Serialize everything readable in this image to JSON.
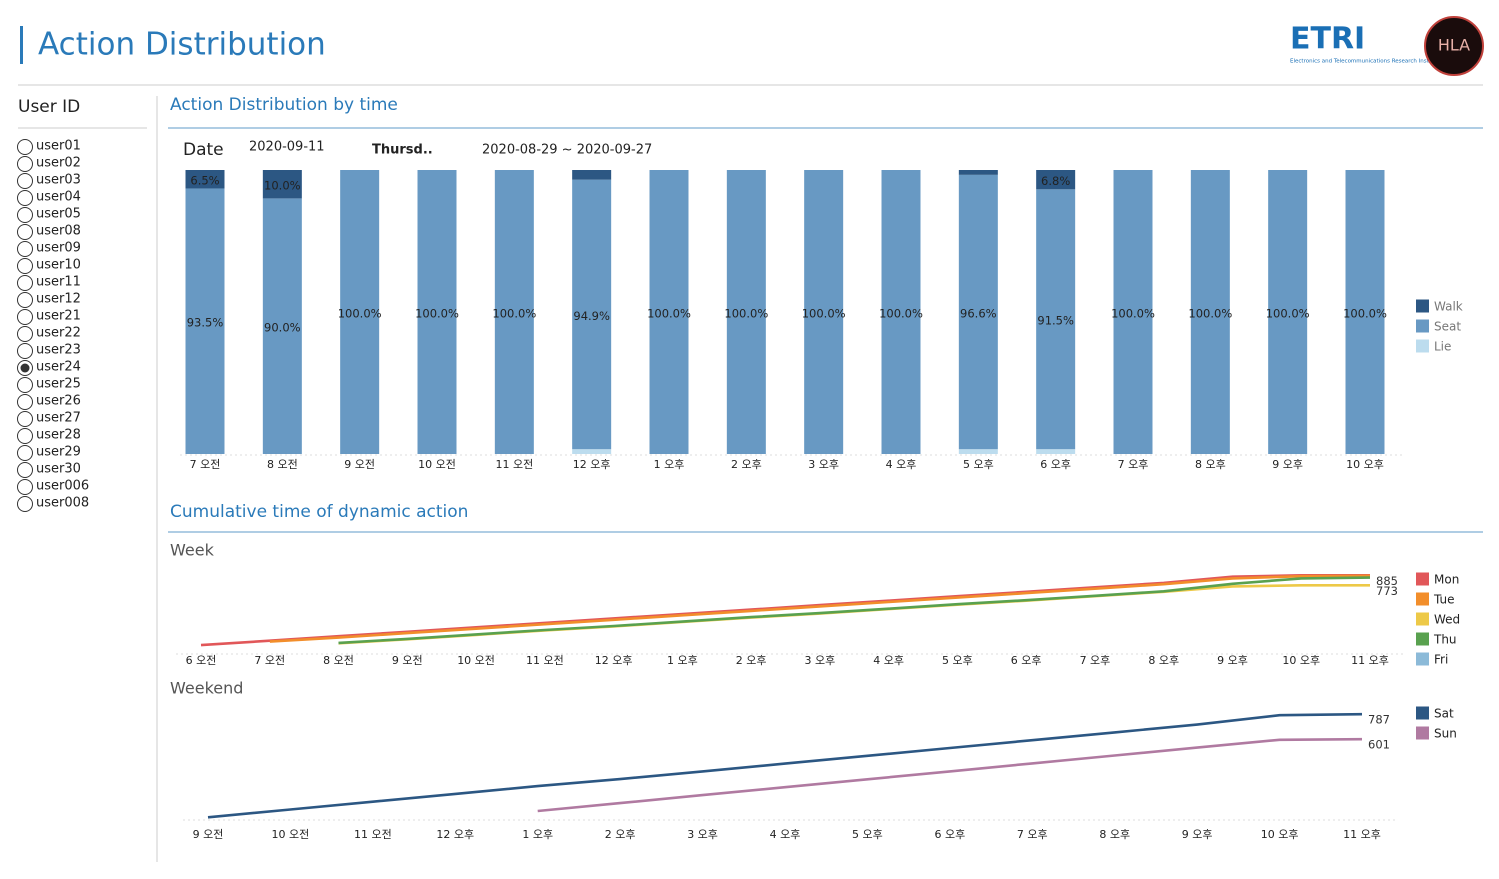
{
  "header": {
    "title": "Action Distribution",
    "logo_text": "ETRI",
    "logo_subtitle": "Electronics and Telecommunications Research Institute",
    "logo2_text": "HLA"
  },
  "sidebar": {
    "title": "User ID",
    "users": [
      "user01",
      "user02",
      "user03",
      "user04",
      "user05",
      "user08",
      "user09",
      "user10",
      "user11",
      "user12",
      "user21",
      "user22",
      "user23",
      "user24",
      "user25",
      "user26",
      "user27",
      "user28",
      "user29",
      "user30",
      "user006",
      "user008"
    ],
    "selected": "user24"
  },
  "filters": {
    "label": "Date",
    "date": "2020-09-11",
    "weekday": "Thursd..",
    "range": "2020-08-29 ~ 2020-09-27"
  },
  "chart_data": [
    {
      "type": "bar",
      "stacked": true,
      "title": "Action Distribution by time",
      "legend": "right",
      "categories": [
        "7 오전",
        "8 오전",
        "9 오전",
        "10 오전",
        "11 오전",
        "12 오후",
        "1 오후",
        "2 오후",
        "3 오후",
        "4 오후",
        "5 오후",
        "6 오후",
        "7 오후",
        "8 오후",
        "9 오후",
        "10 오후"
      ],
      "ylim": [
        0,
        100
      ],
      "series": [
        {
          "name": "Walk",
          "color": "#2c5783",
          "values": [
            6.5,
            10.0,
            0,
            0,
            0,
            3.4,
            0,
            0,
            0,
            0,
            1.7,
            6.8,
            0,
            0,
            0,
            0
          ],
          "value_labels": [
            "6.5%",
            "10.0%",
            null,
            null,
            null,
            null,
            null,
            null,
            null,
            null,
            null,
            "6.8%",
            null,
            null,
            null,
            null
          ]
        },
        {
          "name": "Seat",
          "color": "#6899c3",
          "values": [
            93.5,
            90.0,
            100,
            100,
            100,
            94.9,
            100,
            100,
            100,
            100,
            96.6,
            91.5,
            100,
            100,
            100,
            100
          ],
          "value_labels": [
            "93.5%",
            "90.0%",
            "100.0%",
            "100.0%",
            "100.0%",
            "94.9%",
            "100.0%",
            "100.0%",
            "100.0%",
            "100.0%",
            "96.6%",
            "91.5%",
            "100.0%",
            "100.0%",
            "100.0%",
            "100.0%"
          ]
        },
        {
          "name": "Lie",
          "color": "#bcdcee",
          "values": [
            0,
            0,
            0,
            0,
            0,
            1.7,
            0,
            0,
            0,
            0,
            1.7,
            1.7,
            0,
            0,
            0,
            0
          ]
        }
      ]
    },
    {
      "type": "line",
      "section": "Cumulative time of dynamic action",
      "title": "Week",
      "legend": "right",
      "categories": [
        "6 오전",
        "7 오전",
        "8 오전",
        "9 오전",
        "10 오전",
        "11 오전",
        "12 오후",
        "1 오후",
        "2 오후",
        "3 오후",
        "4 오후",
        "5 오후",
        "6 오후",
        "7 오후",
        "8 오후",
        "9 오후",
        "10 오후",
        "11 오후"
      ],
      "ylim": [
        0,
        900
      ],
      "series": [
        {
          "name": "Mon",
          "color": "#e15759",
          "values": [
            100,
            150,
            200,
            250,
            300,
            350,
            400,
            450,
            500,
            550,
            600,
            650,
            700,
            750,
            800,
            870,
            885,
            885
          ],
          "label_last": true
        },
        {
          "name": "Tue",
          "color": "#f28e2b",
          "values": [
            null,
            140,
            185,
            235,
            285,
            335,
            385,
            435,
            485,
            535,
            585,
            635,
            685,
            735,
            785,
            850,
            875,
            880
          ],
          "label_last": false
        },
        {
          "name": "Wed",
          "color": "#edc948",
          "values": [
            null,
            null,
            120,
            165,
            215,
            265,
            310,
            360,
            410,
            455,
            505,
            555,
            600,
            650,
            700,
            760,
            773,
            773
          ],
          "label_last": true
        },
        {
          "name": "Thu",
          "color": "#59a14f",
          "values": [
            null,
            null,
            125,
            170,
            220,
            270,
            315,
            365,
            415,
            460,
            510,
            560,
            605,
            655,
            705,
            790,
            850,
            860
          ],
          "label_last": false
        },
        {
          "name": "Fri",
          "color": "#8cbad8",
          "values": [
            null,
            null,
            null,
            null,
            null,
            null,
            null,
            null,
            null,
            null,
            null,
            null,
            null,
            null,
            null,
            null,
            null,
            null
          ],
          "label_last": false
        }
      ]
    },
    {
      "type": "line",
      "title": "Weekend",
      "legend": "right",
      "categories": [
        "9 오전",
        "10 오전",
        "11 오전",
        "12 오후",
        "1 오후",
        "2 오후",
        "3 오후",
        "4 오후",
        "5 오후",
        "6 오후",
        "7 오후",
        "8 오후",
        "9 오후",
        "10 오후",
        "11 오후"
      ],
      "ylim": [
        0,
        800
      ],
      "series": [
        {
          "name": "Sat",
          "color": "#2c5783",
          "values": [
            20,
            78,
            136,
            194,
            252,
            304,
            362,
            420,
            478,
            536,
            594,
            652,
            710,
            780,
            787
          ],
          "label_last": true
        },
        {
          "name": "Sun",
          "color": "#b07aa1",
          "values": [
            null,
            null,
            null,
            null,
            67,
            126,
            185,
            244,
            303,
            362,
            421,
            480,
            539,
            597,
            601
          ],
          "label_last": true
        }
      ]
    }
  ]
}
